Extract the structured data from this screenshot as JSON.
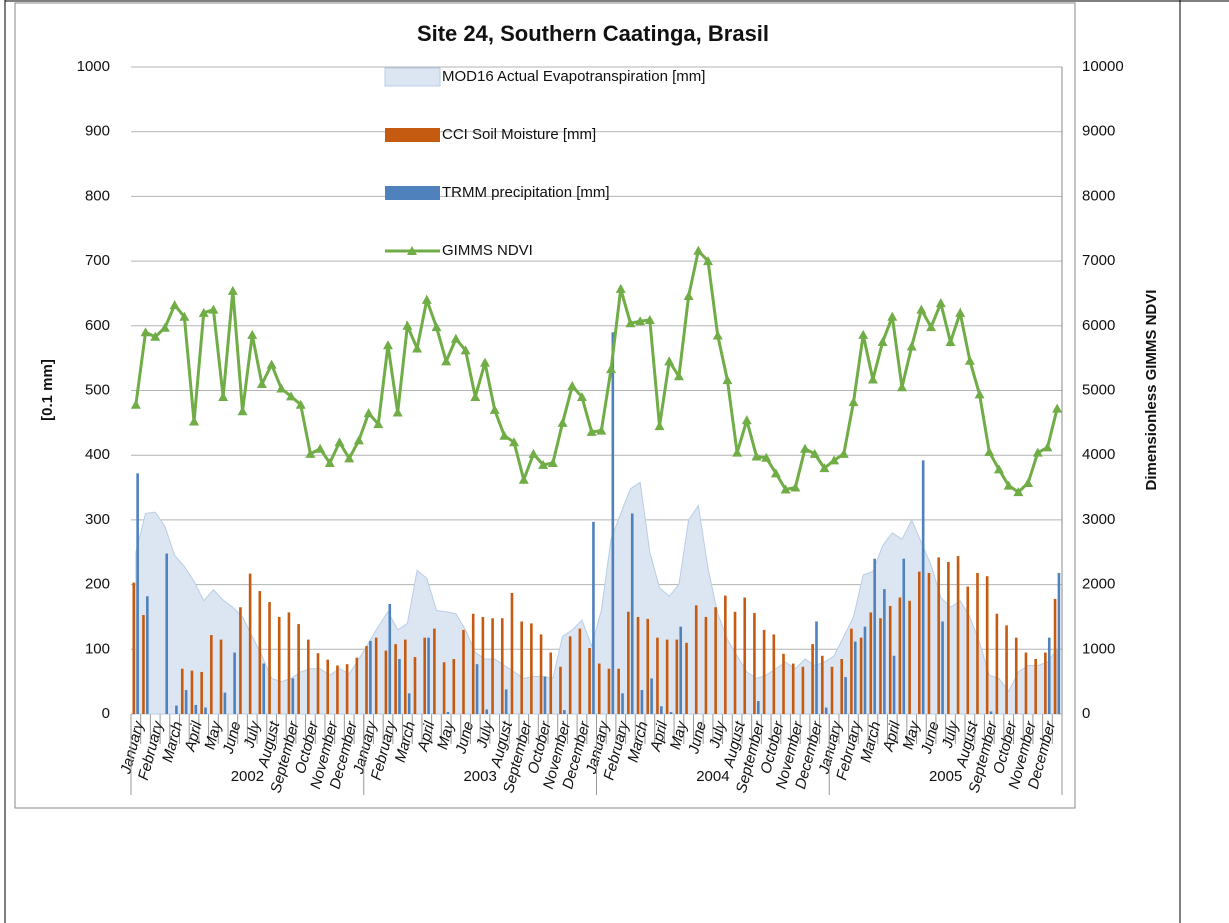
{
  "chart_data": {
    "type": "combo",
    "title": "Site 24, Southern Caatinga, Brasil",
    "y_label": "[0.1 mm]",
    "y2_label": "Dimensionless GIMMS NDVI",
    "categories": [
      "January",
      null,
      "February",
      null,
      "March",
      null,
      "April",
      null,
      "May",
      null,
      "June",
      null,
      "July",
      null,
      "August",
      null,
      "September",
      null,
      "October",
      null,
      "November",
      null,
      "December",
      null,
      "January",
      null,
      "February",
      null,
      "March",
      null,
      "April",
      null,
      "May",
      null,
      "June",
      null,
      "July",
      null,
      "August",
      null,
      "September",
      null,
      "October",
      null,
      "November",
      null,
      "December",
      null,
      "January",
      null,
      "February",
      null,
      "March",
      null,
      "April",
      null,
      "May",
      null,
      "June",
      null,
      "July",
      null,
      "August",
      null,
      "September",
      null,
      "October",
      null,
      "November",
      null,
      "December",
      null,
      "January",
      null,
      "February",
      null,
      "March",
      null,
      "April",
      null,
      "May",
      null,
      "June",
      null,
      "July",
      null,
      "August",
      null,
      "September",
      null,
      "October",
      null,
      "November",
      null,
      "December",
      null
    ],
    "years": [
      "2002",
      "2003",
      "2004",
      "2005"
    ],
    "ylim": [
      0,
      1000
    ],
    "yticks": [
      0,
      100,
      200,
      300,
      400,
      500,
      600,
      700,
      800,
      900,
      1000
    ],
    "y2lim": [
      0,
      10000
    ],
    "y2ticks": [
      0,
      1000,
      2000,
      3000,
      4000,
      5000,
      6000,
      7000,
      8000,
      9000,
      10000
    ],
    "grid": true,
    "legend": "top",
    "series": [
      {
        "name": "MOD16 Actual Evapotranspiration [mm]",
        "type": "area",
        "color": "#dce6f2",
        "values": [
          250,
          310,
          312,
          290,
          245,
          228,
          205,
          175,
          192,
          176,
          165,
          150,
          120,
          90,
          55,
          50,
          55,
          65,
          70,
          70,
          60,
          70,
          62,
          85,
          110,
          135,
          158,
          130,
          140,
          222,
          210,
          160,
          158,
          155,
          130,
          95,
          85,
          85,
          75,
          65,
          55,
          58,
          58,
          55,
          120,
          130,
          145,
          105,
          160,
          270,
          310,
          348,
          358,
          250,
          195,
          182,
          200,
          300,
          322,
          225,
          155,
          115,
          90,
          65,
          55,
          60,
          70,
          80,
          70,
          85,
          75,
          80,
          90,
          120,
          150,
          215,
          220,
          260,
          280,
          270,
          300,
          265,
          230,
          180,
          165,
          175,
          150,
          110,
          60,
          55,
          35,
          65,
          75,
          75,
          80,
          100
        ]
      },
      {
        "name": "CCI Soil Moisture [mm]",
        "type": "bar",
        "color": "#c55a11",
        "values": [
          203,
          153,
          0,
          0,
          0,
          70,
          67,
          65,
          122,
          115,
          0,
          165,
          217,
          190,
          173,
          150,
          157,
          139,
          115,
          94,
          84,
          75,
          77,
          87,
          105,
          118,
          98,
          108,
          115,
          88,
          118,
          132,
          80,
          85,
          130,
          155,
          150,
          148,
          148,
          187,
          143,
          140,
          123,
          95,
          73,
          120,
          132,
          102,
          78,
          70,
          70,
          158,
          150,
          147,
          118,
          115,
          115,
          110,
          168,
          150,
          165,
          183,
          158,
          180,
          156,
          130,
          123,
          93,
          78,
          73,
          108,
          90,
          73,
          85,
          132,
          118,
          157,
          148,
          167,
          180,
          175,
          220,
          218,
          242,
          235,
          244,
          197,
          218,
          213,
          155,
          137,
          118,
          95,
          85,
          95,
          178
        ]
      },
      {
        "name": "TRMM precipitation [mm]",
        "type": "bar",
        "color": "#4f81bd",
        "values": [
          372,
          182,
          0,
          248,
          13,
          37,
          14,
          10,
          0,
          33,
          95,
          0,
          0,
          78,
          0,
          0,
          55,
          0,
          0,
          0,
          0,
          0,
          0,
          0,
          113,
          0,
          170,
          85,
          32,
          0,
          118,
          0,
          3,
          0,
          0,
          77,
          7,
          0,
          38,
          0,
          0,
          0,
          58,
          0,
          6,
          0,
          0,
          297,
          0,
          590,
          32,
          310,
          37,
          55,
          12,
          3,
          135,
          0,
          0,
          0,
          0,
          0,
          0,
          0,
          20,
          0,
          0,
          0,
          0,
          0,
          143,
          10,
          0,
          57,
          112,
          135,
          240,
          193,
          90,
          240,
          0,
          392,
          0,
          143,
          0,
          0,
          0,
          0,
          4,
          0,
          0,
          0,
          0,
          0,
          118,
          218
        ]
      },
      {
        "name": "GIMMS NDVI",
        "type": "line",
        "axis": "y2",
        "color": "#70ad47",
        "values": [
          4780,
          5900,
          5830,
          5970,
          6320,
          6140,
          4520,
          6200,
          6250,
          4900,
          6540,
          4680,
          5860,
          5100,
          5400,
          5030,
          4910,
          4780,
          4020,
          4100,
          3880,
          4200,
          3950,
          4230,
          4650,
          4480,
          5700,
          4660,
          6000,
          5650,
          6400,
          5980,
          5450,
          5800,
          5620,
          4900,
          5430,
          4700,
          4300,
          4200,
          3620,
          4020,
          3850,
          3880,
          4500,
          5070,
          4900,
          4360,
          4380,
          5330,
          6570,
          6040,
          6070,
          6090,
          4450,
          5450,
          5220,
          6460,
          7160,
          7000,
          5850,
          5160,
          4040,
          4540,
          3980,
          3960,
          3720,
          3470,
          3500,
          4100,
          4020,
          3800,
          3920,
          4020,
          4820,
          5860,
          5170,
          5750,
          6140,
          5050,
          5680,
          6250,
          5980,
          6350,
          5750,
          6200,
          5460,
          4940,
          4050,
          3780,
          3530,
          3430,
          3570,
          4040,
          4120,
          4720
        ]
      }
    ]
  }
}
